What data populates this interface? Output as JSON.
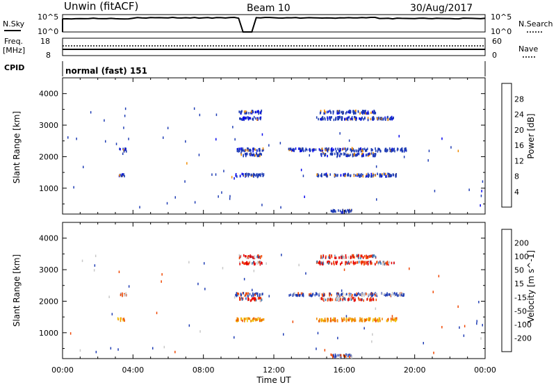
{
  "header": {
    "station": "Unwin (fitACF)",
    "beam": "Beam 10",
    "date": "30/Aug/2017"
  },
  "strip_labels": {
    "nsky": "N.Sky",
    "nsearch": "N.Search",
    "freq_line1": "Freq.",
    "freq_line2": "[MHz]",
    "nave": "Nave",
    "cpid": "CPID",
    "mode": "normal (fast) 151"
  },
  "noise_strip": {
    "ytick_top": "10^5",
    "ytick_bottom": "10^0",
    "rtick_top": "10^5",
    "rtick_bottom": "10^0"
  },
  "freq_strip": {
    "left_ticks": [
      "18",
      "8"
    ],
    "right_ticks": [
      "60",
      "0"
    ]
  },
  "axes": {
    "xlabel": "Time UT",
    "ylabel": "Slant Range [km]",
    "xticks": [
      "00:00",
      "04:00",
      "08:00",
      "12:00",
      "16:00",
      "20:00",
      "00:00"
    ],
    "yticks": [
      "1000",
      "2000",
      "3000",
      "4000"
    ],
    "xlim_hours": [
      0,
      24
    ],
    "ylim_km": [
      180,
      4500
    ]
  },
  "chart_data": [
    {
      "type": "heatmap",
      "title": "",
      "xlabel": "",
      "ylabel": "Slant Range [km]",
      "colorbar": {
        "label": "Power [dB]",
        "ticks": [
          "4",
          "8",
          "12",
          "16",
          "20",
          "24",
          "28"
        ],
        "colors": [
          "#0000ee",
          "#1e3cb4",
          "#3c8c78",
          "#7ac850",
          "#e6c800",
          "#f08c00",
          "#f04600",
          "#e60000"
        ]
      },
      "bands_km": [
        300,
        1450,
        2100,
        2250,
        3250,
        3450
      ],
      "grid": false
    },
    {
      "type": "heatmap",
      "title": "",
      "xlabel": "Time UT",
      "ylabel": "Slant Range [km]",
      "colorbar": {
        "label": "Velocity [m s^-1]",
        "ticks": [
          "200",
          "100",
          "50",
          "15",
          "-15",
          "-50",
          "-100",
          "-200"
        ],
        "colors": [
          "#1e3cb4",
          "#3c78b4",
          "#3c8c78",
          "#7ac850",
          "#c8c8c8",
          "#f0c800",
          "#f08c00",
          "#f04600",
          "#e60000"
        ]
      },
      "bands_km": [
        300,
        1450,
        2100,
        2250,
        3250,
        3450
      ],
      "grid": false
    }
  ]
}
